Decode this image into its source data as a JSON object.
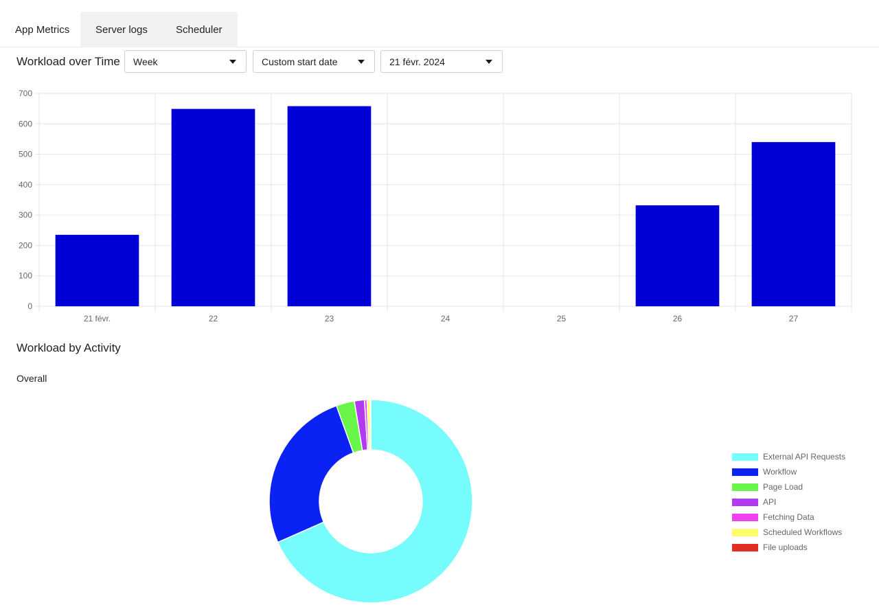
{
  "tabs": [
    {
      "label": "App Metrics",
      "active": true
    },
    {
      "label": "Server logs",
      "active": false
    },
    {
      "label": "Scheduler",
      "active": false
    }
  ],
  "workload_time": {
    "title": "Workload over Time",
    "period_select": {
      "value": "Week",
      "icon": "caret-down-icon"
    },
    "start_mode_select": {
      "value": "Custom start date",
      "icon": "caret-down-icon"
    },
    "date_select": {
      "value": "21 févr. 2024",
      "icon": "caret-down-icon"
    }
  },
  "workload_activity": {
    "title": "Workload by Activity",
    "subtitle": "Overall"
  },
  "chart_data": [
    {
      "type": "bar",
      "categories": [
        "21 févr.",
        "22",
        "23",
        "24",
        "25",
        "26",
        "27"
      ],
      "values": [
        235,
        649,
        658,
        0,
        0,
        332,
        540
      ],
      "ylim": [
        0,
        700
      ],
      "yticks": [
        "0",
        "100",
        "200",
        "300",
        "400",
        "500",
        "600",
        "700"
      ],
      "grid": true,
      "color": "#0000d6"
    },
    {
      "type": "pie",
      "donut": true,
      "labels": [
        "External API Requests",
        "Workflow",
        "Page Load",
        "API",
        "Fetching Data",
        "Scheduled Workflows",
        "File uploads"
      ],
      "values": [
        68.4,
        26.1,
        2.9,
        1.6,
        0.4,
        0.5,
        0.1
      ],
      "colors": [
        "#77fcfd",
        "#0a22f3",
        "#6af54a",
        "#b23bef",
        "#ef41f0",
        "#fffd68",
        "#e22e21"
      ],
      "legend_position": "right"
    }
  ]
}
